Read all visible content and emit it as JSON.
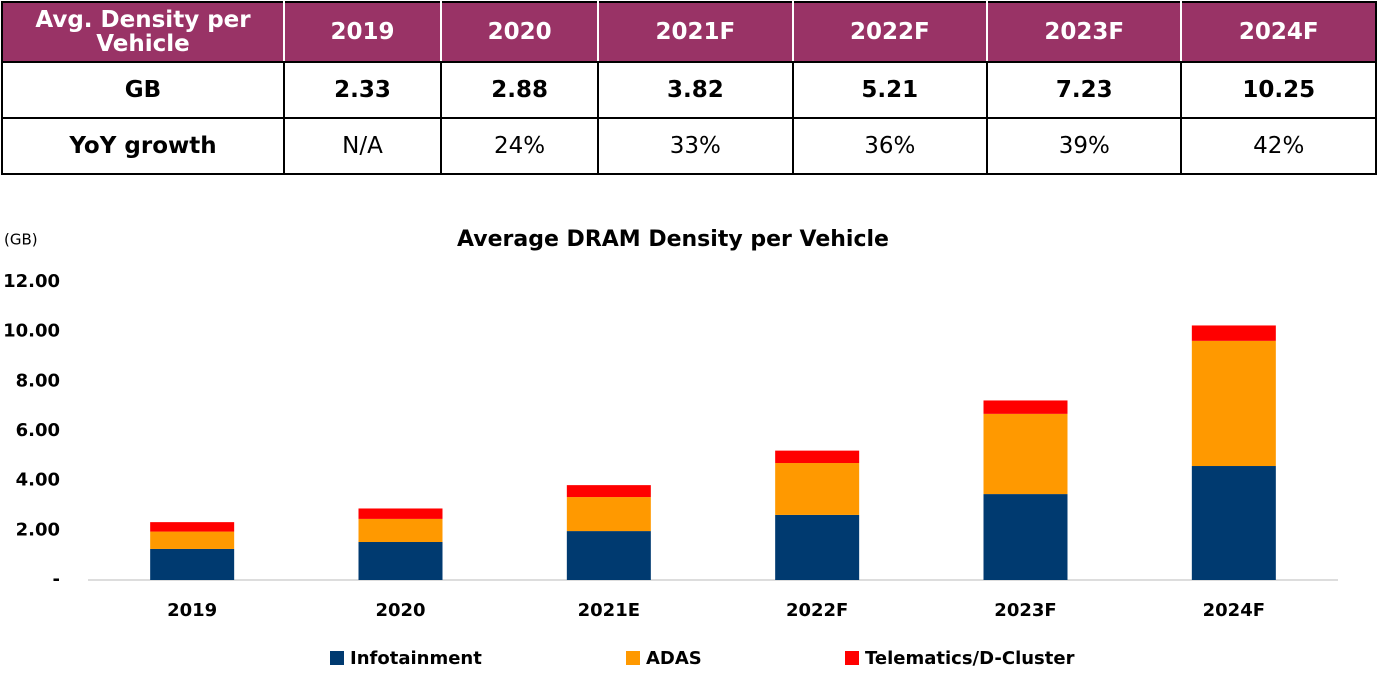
{
  "table": {
    "header": [
      "Avg. Density per Vehicle",
      "2019",
      "2020",
      "2021F",
      "2022F",
      "2023F",
      "2024F"
    ],
    "rows": [
      [
        "GB",
        "2.33",
        "2.88",
        "3.82",
        "5.21",
        "7.23",
        "10.25"
      ],
      [
        "YoY growth",
        "N/A",
        "24%",
        "33%",
        "36%",
        "39%",
        "42%"
      ]
    ]
  },
  "chart_data": {
    "type": "stacked_bar",
    "title": "Average DRAM Density per Vehicle",
    "y_label": "(GB)",
    "categories": [
      "2019",
      "2020",
      "2021E",
      "2022F",
      "2023F",
      "2024F"
    ],
    "series": [
      {
        "name": "Infotainment",
        "color": "#003a70",
        "values": [
          1.25,
          1.53,
          1.97,
          2.62,
          3.46,
          4.59
        ]
      },
      {
        "name": "ADAS",
        "color": "#ff9900",
        "values": [
          0.7,
          0.93,
          1.37,
          2.09,
          3.23,
          5.04
        ]
      },
      {
        "name": "Telematics/D-Cluster",
        "color": "#ff0000",
        "values": [
          0.38,
          0.42,
          0.48,
          0.5,
          0.54,
          0.62
        ]
      }
    ],
    "ylim": [
      0,
      12
    ],
    "yticks": [
      {
        "value": 0,
        "label": "-"
      },
      {
        "value": 2,
        "label": "2.00"
      },
      {
        "value": 4,
        "label": "4.00"
      },
      {
        "value": 6,
        "label": "6.00"
      },
      {
        "value": 8,
        "label": "8.00"
      },
      {
        "value": 10,
        "label": "10.00"
      },
      {
        "value": 12,
        "label": "12.00"
      }
    ],
    "grid": false,
    "legend": "bottom"
  }
}
